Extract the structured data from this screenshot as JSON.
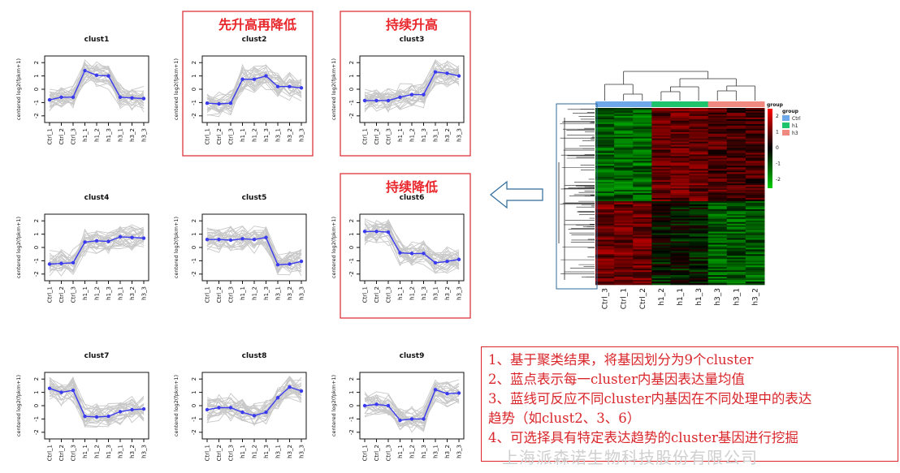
{
  "chart_data": [
    {
      "type": "line",
      "title": "clust1",
      "ylabel": "centered log2(fpkm+1)",
      "categories": [
        "Ctrl_1",
        "Ctrl_2",
        "Ctrl_3",
        "h1_1",
        "h1_2",
        "h1_3",
        "h3_1",
        "h3_2",
        "h3_3"
      ],
      "values": [
        -0.8,
        -0.6,
        -0.6,
        1.4,
        1.05,
        1.0,
        -0.6,
        -0.65,
        -0.7
      ],
      "ylim": [
        -2.5,
        2.5
      ],
      "yticks": [
        -2,
        -1,
        0,
        1,
        2
      ]
    },
    {
      "type": "line",
      "title": "clust2",
      "ylabel": "centered log2(fpkm+1)",
      "categories": [
        "Ctrl_1",
        "Ctrl_2",
        "Ctrl_3",
        "h1_1",
        "h1_2",
        "h1_3",
        "h3_1",
        "h3_2",
        "h3_3"
      ],
      "values": [
        -1.05,
        -1.1,
        -1.05,
        0.75,
        0.75,
        1.0,
        0.2,
        0.2,
        0.1
      ],
      "ylim": [
        -2.5,
        2.5
      ],
      "yticks": [
        -2,
        -1,
        0,
        1,
        2
      ]
    },
    {
      "type": "line",
      "title": "clust3",
      "ylabel": "centered log2(fpkm+1)",
      "categories": [
        "Ctrl_1",
        "Ctrl_2",
        "Ctrl_3",
        "h1_1",
        "h1_2",
        "h1_3",
        "h3_1",
        "h3_2",
        "h3_3"
      ],
      "values": [
        -0.85,
        -0.85,
        -0.85,
        -0.6,
        -0.4,
        -0.4,
        1.3,
        1.2,
        1.0
      ],
      "ylim": [
        -2.5,
        2.5
      ],
      "yticks": [
        -2,
        -1,
        0,
        1,
        2
      ]
    },
    {
      "type": "line",
      "title": "clust4",
      "ylabel": "centered log2(fpkm+1)",
      "categories": [
        "Ctrl_1",
        "Ctrl_2",
        "Ctrl_3",
        "h1_1",
        "h1_2",
        "h1_3",
        "h3_1",
        "h3_2",
        "h3_3"
      ],
      "values": [
        -1.25,
        -1.2,
        -1.15,
        0.4,
        0.5,
        0.45,
        0.8,
        0.75,
        0.7
      ],
      "ylim": [
        -2.5,
        2.5
      ],
      "yticks": [
        -2,
        -1,
        0,
        1,
        2
      ]
    },
    {
      "type": "line",
      "title": "clust5",
      "ylabel": "centered log2(fpkm+1)",
      "categories": [
        "Ctrl_1",
        "Ctrl_2",
        "Ctrl_3",
        "h1_1",
        "h1_2",
        "h1_3",
        "h3_1",
        "h3_2",
        "h3_3"
      ],
      "values": [
        0.6,
        0.6,
        0.55,
        0.65,
        0.6,
        0.75,
        -1.3,
        -1.25,
        -1.05
      ],
      "ylim": [
        -2.5,
        2.5
      ],
      "yticks": [
        -2,
        -1,
        0,
        1,
        2
      ]
    },
    {
      "type": "line",
      "title": "clust6",
      "ylabel": "centered log2(fpkm+1)",
      "categories": [
        "Ctrl_1",
        "Ctrl_2",
        "Ctrl_3",
        "h1_1",
        "h1_2",
        "h1_3",
        "h3_1",
        "h3_2",
        "h3_3"
      ],
      "values": [
        1.2,
        1.2,
        1.15,
        -0.4,
        -0.45,
        -0.45,
        -1.15,
        -1.05,
        -0.9
      ],
      "ylim": [
        -2.5,
        2.5
      ],
      "yticks": [
        -2,
        -1,
        0,
        1,
        2
      ]
    },
    {
      "type": "line",
      "title": "clust7",
      "ylabel": "centered log2(fpkm+1)",
      "categories": [
        "Ctrl_1",
        "Ctrl_2",
        "Ctrl_3",
        "h1_1",
        "h1_2",
        "h1_3",
        "h3_1",
        "h3_2",
        "h3_3"
      ],
      "values": [
        1.3,
        1.0,
        1.15,
        -0.8,
        -0.85,
        -0.8,
        -0.45,
        -0.3,
        -0.25
      ],
      "ylim": [
        -2.5,
        2.5
      ],
      "yticks": [
        -2,
        -1,
        0,
        1,
        2
      ]
    },
    {
      "type": "line",
      "title": "clust8",
      "ylabel": "centered log2(fpkm+1)",
      "categories": [
        "Ctrl_1",
        "Ctrl_2",
        "Ctrl_3",
        "h1_1",
        "h1_2",
        "h1_3",
        "h3_1",
        "h3_2",
        "h3_3"
      ],
      "values": [
        -0.3,
        -0.15,
        -0.15,
        -0.5,
        -0.75,
        -0.5,
        0.6,
        1.4,
        1.1
      ],
      "ylim": [
        -2.5,
        2.5
      ],
      "yticks": [
        -2,
        -1,
        0,
        1,
        2
      ]
    },
    {
      "type": "line",
      "title": "clust9",
      "ylabel": "centered log2(fpkm+1)",
      "categories": [
        "Ctrl_1",
        "Ctrl_2",
        "Ctrl_3",
        "h1_1",
        "h1_2",
        "h1_3",
        "h3_1",
        "h3_2",
        "h3_3"
      ],
      "values": [
        0.0,
        0.1,
        0.0,
        -1.1,
        -1.0,
        -1.0,
        1.2,
        0.9,
        0.95
      ],
      "ylim": [
        -2.5,
        2.5
      ],
      "yticks": [
        -2,
        -1,
        0,
        1,
        2
      ]
    },
    {
      "type": "heatmap",
      "columns": [
        "Ctrl_3",
        "Ctrl_1",
        "Ctrl_2",
        "h1_2",
        "h1_1",
        "h1_3",
        "h3_3",
        "h3_1",
        "h3_2"
      ],
      "groups": [
        {
          "name": "Ctrl",
          "color": "#6fa8e8"
        },
        {
          "name": "h1",
          "color": "#1ec46b"
        },
        {
          "name": "h3",
          "color": "#f08a80"
        }
      ],
      "legend_title": "group",
      "color_scale": {
        "ticks": [
          2,
          1,
          0,
          -1,
          -2
        ],
        "high": "#ff0000",
        "mid": "#000000",
        "low": "#00cc00"
      }
    }
  ],
  "highlights": [
    {
      "chart": "clust2",
      "label": "先升高再降低"
    },
    {
      "chart": "clust3",
      "label": "持续升高"
    },
    {
      "chart": "clust6",
      "label": "持续降低"
    }
  ],
  "notes": [
    "1、基于聚类结果，将基因划分为9个cluster",
    "2、蓝点表示每一cluster内基因表达量均值",
    "3、蓝线可反应不同cluster内基因在不同处理中的表达",
    "趋势（如clust2、3、6）",
    "4、可选择具有特定表达趋势的cluster基因进行挖掘"
  ],
  "watermark": "上海派森诺生物科技股份有限公司",
  "colors": {
    "mean_line": "#3a3aee",
    "background_lines": "#c8c8c8",
    "highlight_border": "#d9262b",
    "arrow": "#2d6a9a"
  }
}
